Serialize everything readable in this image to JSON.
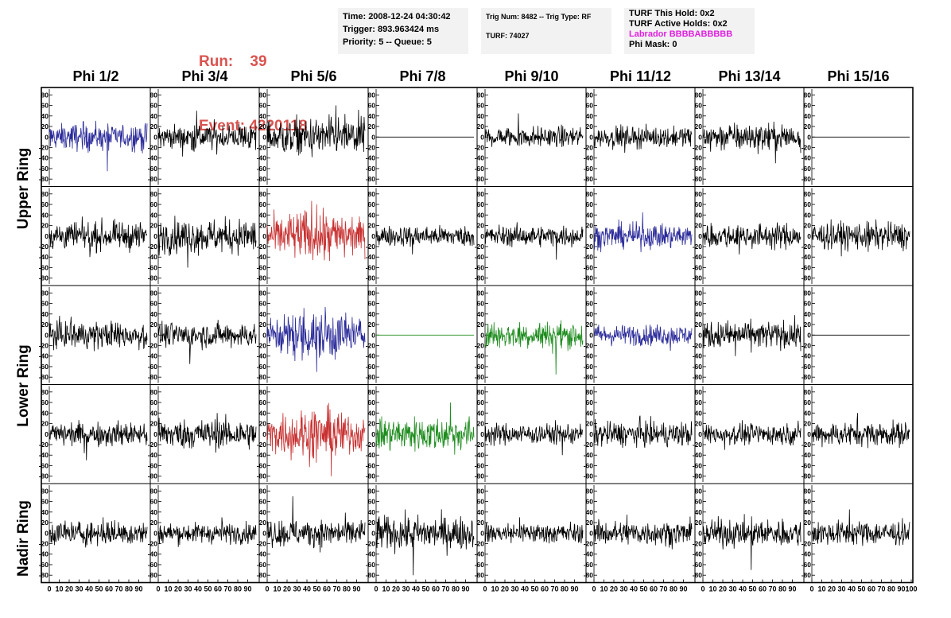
{
  "header": {
    "run_label": "Run:",
    "run_value": "39",
    "event_label": "Event:",
    "event_value": "4220118",
    "time": "Time: 2008-12-24 04:30:42",
    "trigger": "Trigger: 893.963424 ms",
    "priority": "Priority: 5 -- Queue: 5",
    "trig_num": "Trig Num: 8482 -- Trig Type: RF",
    "turf": "TURF: 74027",
    "turf_this_hold": "TURF This Hold: 0x2",
    "turf_active_holds": "TURF Active Holds: 0x2",
    "labrador": "Labrador BBBBABBBBB",
    "phi_mask": "Phi Mask: 0"
  },
  "columns": [
    "Phi 1/2",
    "Phi 3/4",
    "Phi 5/6",
    "Phi 7/8",
    "Phi 9/10",
    "Phi 11/12",
    "Phi 13/14",
    "Phi 15/16"
  ],
  "ring_labels": [
    "Upper Ring",
    "Lower Ring",
    "Nadir Ring"
  ],
  "colors": {
    "black": "#000000",
    "blue": "#2a2a9a",
    "red": "#c83030",
    "green": "#1e8c1e",
    "run_text": "#d9534f",
    "magenta": "#e020e0"
  },
  "chart_data": {
    "type": "line",
    "title": "",
    "xlabel": "",
    "ylabel": "",
    "ylim": [
      -85,
      85
    ],
    "xlim": [
      0,
      100
    ],
    "y_ticks": [
      80,
      60,
      40,
      20,
      0,
      -20,
      -40,
      -60,
      -80
    ],
    "y_tick_labels": [
      "80",
      "60",
      "40",
      "20",
      "0",
      "-20",
      "-40",
      "-60",
      "-80"
    ],
    "x_tick_labels": [
      "0",
      "10",
      "20",
      "30",
      "40",
      "50",
      "60",
      "70",
      "80",
      "90",
      "100"
    ],
    "grid": false,
    "panels": [
      {
        "row": 0,
        "col": 0,
        "color": "blue",
        "amp": 20,
        "spike": -65
      },
      {
        "row": 0,
        "col": 1,
        "color": "black",
        "amp": 20,
        "spike": 50
      },
      {
        "row": 0,
        "col": 2,
        "color": "black",
        "amp": 28,
        "spike": 60
      },
      {
        "row": 0,
        "col": 3,
        "color": "black",
        "amp": 0,
        "spike": 0
      },
      {
        "row": 0,
        "col": 4,
        "color": "black",
        "amp": 15,
        "spike": 45
      },
      {
        "row": 0,
        "col": 5,
        "color": "black",
        "amp": 15,
        "spike": -30
      },
      {
        "row": 0,
        "col": 6,
        "color": "black",
        "amp": 20,
        "spike": -50
      },
      {
        "row": 0,
        "col": 7,
        "color": "black",
        "amp": 0,
        "spike": 0
      },
      {
        "row": 1,
        "col": 0,
        "color": "black",
        "amp": 20,
        "spike": -40
      },
      {
        "row": 1,
        "col": 1,
        "color": "black",
        "amp": 25,
        "spike": -60
      },
      {
        "row": 1,
        "col": 2,
        "color": "red",
        "amp": 40,
        "spike": 60
      },
      {
        "row": 1,
        "col": 3,
        "color": "black",
        "amp": 15,
        "spike": -35
      },
      {
        "row": 1,
        "col": 4,
        "color": "black",
        "amp": 15,
        "spike": -45
      },
      {
        "row": 1,
        "col": 5,
        "color": "blue",
        "amp": 18,
        "spike": 45
      },
      {
        "row": 1,
        "col": 6,
        "color": "black",
        "amp": 18,
        "spike": -35
      },
      {
        "row": 1,
        "col": 7,
        "color": "black",
        "amp": 20,
        "spike": -30
      },
      {
        "row": 2,
        "col": 0,
        "color": "black",
        "amp": 20,
        "spike": 35
      },
      {
        "row": 2,
        "col": 1,
        "color": "black",
        "amp": 18,
        "spike": -55
      },
      {
        "row": 2,
        "col": 2,
        "color": "blue",
        "amp": 40,
        "spike": -70
      },
      {
        "row": 2,
        "col": 3,
        "color": "green",
        "amp": 0,
        "spike": 0
      },
      {
        "row": 2,
        "col": 4,
        "color": "green",
        "amp": 20,
        "spike": -75
      },
      {
        "row": 2,
        "col": 5,
        "color": "blue",
        "amp": 15,
        "spike": -30
      },
      {
        "row": 2,
        "col": 6,
        "color": "black",
        "amp": 20,
        "spike": -40
      },
      {
        "row": 2,
        "col": 7,
        "color": "black",
        "amp": 0,
        "spike": 0
      },
      {
        "row": 3,
        "col": 0,
        "color": "black",
        "amp": 18,
        "spike": -50
      },
      {
        "row": 3,
        "col": 1,
        "color": "black",
        "amp": 22,
        "spike": 40
      },
      {
        "row": 3,
        "col": 2,
        "color": "red",
        "amp": 40,
        "spike": -80
      },
      {
        "row": 3,
        "col": 3,
        "color": "green",
        "amp": 25,
        "spike": 60
      },
      {
        "row": 3,
        "col": 4,
        "color": "black",
        "amp": 15,
        "spike": -40
      },
      {
        "row": 3,
        "col": 5,
        "color": "black",
        "amp": 18,
        "spike": 35
      },
      {
        "row": 3,
        "col": 6,
        "color": "black",
        "amp": 15,
        "spike": -30
      },
      {
        "row": 3,
        "col": 7,
        "color": "black",
        "amp": 18,
        "spike": 40
      },
      {
        "row": 4,
        "col": 0,
        "color": "black",
        "amp": 18,
        "spike": 30
      },
      {
        "row": 4,
        "col": 1,
        "color": "black",
        "amp": 15,
        "spike": 30
      },
      {
        "row": 4,
        "col": 2,
        "color": "black",
        "amp": 20,
        "spike": 70
      },
      {
        "row": 4,
        "col": 3,
        "color": "black",
        "amp": 25,
        "spike": -80
      },
      {
        "row": 4,
        "col": 4,
        "color": "black",
        "amp": 15,
        "spike": 30
      },
      {
        "row": 4,
        "col": 5,
        "color": "black",
        "amp": 18,
        "spike": 35
      },
      {
        "row": 4,
        "col": 6,
        "color": "black",
        "amp": 20,
        "spike": -70
      },
      {
        "row": 4,
        "col": 7,
        "color": "black",
        "amp": 18,
        "spike": 45
      }
    ]
  }
}
